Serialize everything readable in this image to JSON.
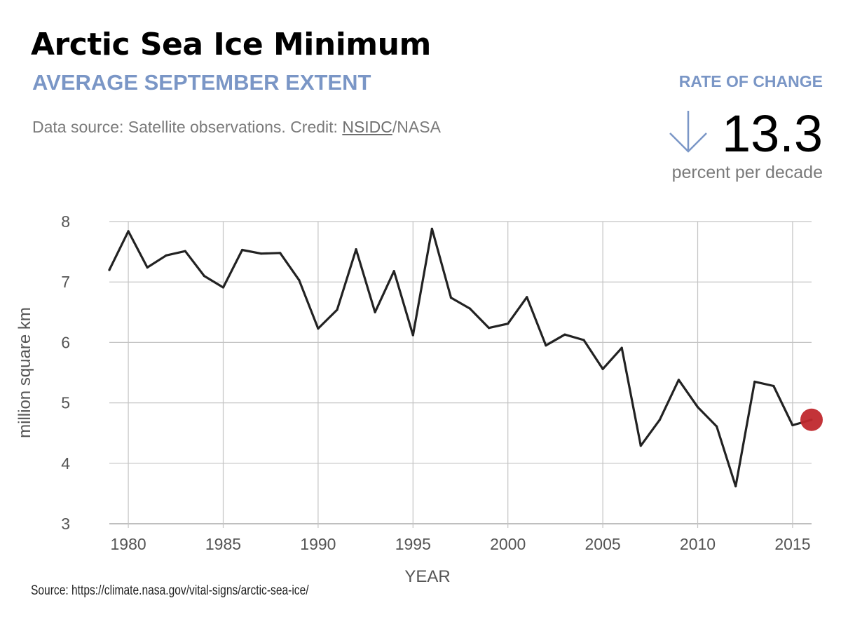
{
  "header": {
    "title": "Arctic Sea Ice Minimum",
    "subtitle": "AVERAGE SEPTEMBER EXTENT",
    "credit_prefix": "Data source: Satellite observations. Credit: ",
    "credit_link": "NSIDC",
    "credit_suffix": "/NASA"
  },
  "rate": {
    "label": "RATE OF CHANGE",
    "value": "13.3",
    "unit": "percent per decade",
    "arrow_icon": "arrow-down-icon",
    "arrow_color": "#7a96c6"
  },
  "footer": {
    "source": "Source: https://climate.nasa.gov/vital-signs/arctic-sea-ice/"
  },
  "chart_data": {
    "type": "line",
    "xlabel": "YEAR",
    "ylabel": "million square km",
    "xlim": [
      1979,
      2016
    ],
    "ylim": [
      3,
      8
    ],
    "xticks": [
      1980,
      1985,
      1990,
      1995,
      2000,
      2005,
      2010,
      2015
    ],
    "yticks": [
      3,
      4,
      5,
      6,
      7,
      8
    ],
    "grid": true,
    "line_color": "#222222",
    "highlight_color": "#c0282d",
    "highlight_year": 2016,
    "x": [
      1979,
      1980,
      1981,
      1982,
      1983,
      1984,
      1985,
      1986,
      1987,
      1988,
      1989,
      1990,
      1991,
      1992,
      1993,
      1994,
      1995,
      1996,
      1997,
      1998,
      1999,
      2000,
      2001,
      2002,
      2003,
      2004,
      2005,
      2006,
      2007,
      2008,
      2009,
      2010,
      2011,
      2012,
      2013,
      2014,
      2015,
      2016
    ],
    "values": [
      7.2,
      7.84,
      7.24,
      7.44,
      7.51,
      7.1,
      6.91,
      7.53,
      7.47,
      7.48,
      7.03,
      6.23,
      6.54,
      7.54,
      6.5,
      7.18,
      6.12,
      7.88,
      6.74,
      6.56,
      6.24,
      6.31,
      6.75,
      5.95,
      6.13,
      6.04,
      5.56,
      5.91,
      4.29,
      4.72,
      5.38,
      4.93,
      4.61,
      3.62,
      5.35,
      5.28,
      4.63,
      4.72
    ]
  }
}
